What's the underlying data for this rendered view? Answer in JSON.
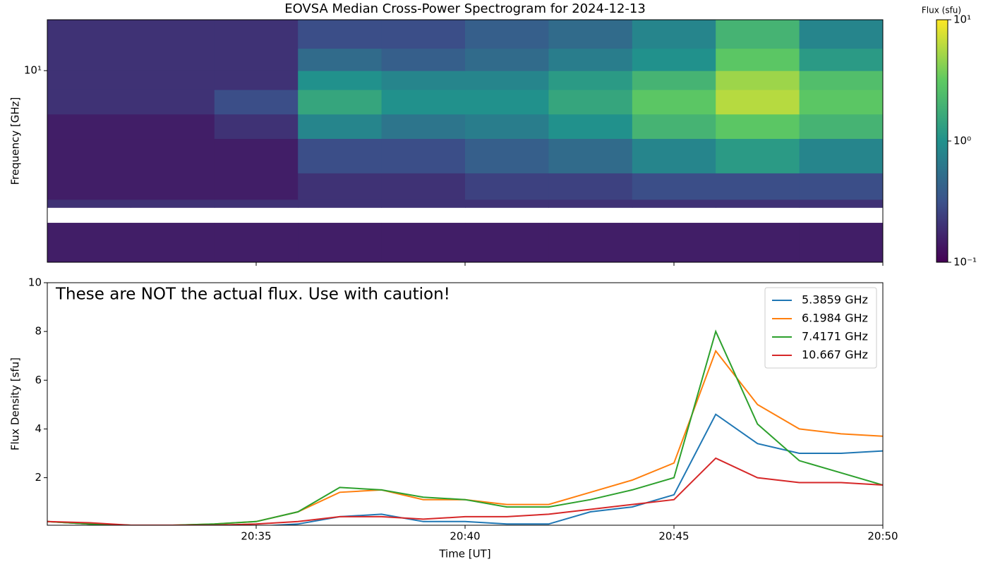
{
  "chart_data": [
    {
      "type": "heatmap",
      "title": "EOVSA Median Cross-Power Spectrogram for 2024-12-13",
      "y_label": "Frequency [GHz]",
      "x": [
        "20:30",
        "20:32",
        "20:34",
        "20:36",
        "20:38",
        "20:40",
        "20:42",
        "20:44",
        "20:46",
        "20:48",
        "20:50"
      ],
      "frequencies": [
        1.05,
        1.67,
        2.0,
        2.2,
        3,
        4.5,
        6,
        8,
        10,
        13,
        18.2
      ],
      "values": [
        [
          0.15,
          0.15,
          0.15,
          0.15,
          0.15,
          0.15,
          0.15,
          0.15,
          0.15,
          0.15
        ],
        [
          null,
          null,
          null,
          null,
          null,
          null,
          null,
          null,
          null,
          null
        ],
        [
          0.2,
          0.2,
          0.2,
          0.2,
          0.2,
          0.2,
          0.2,
          0.2,
          0.2,
          0.2
        ],
        [
          0.15,
          0.15,
          0.15,
          0.2,
          0.2,
          0.25,
          0.25,
          0.3,
          0.3,
          0.3
        ],
        [
          0.15,
          0.15,
          0.15,
          0.3,
          0.3,
          0.4,
          0.5,
          0.8,
          1.2,
          0.8
        ],
        [
          0.15,
          0.15,
          0.2,
          0.8,
          0.6,
          0.7,
          1.0,
          2.0,
          3.0,
          2.0
        ],
        [
          0.2,
          0.2,
          0.3,
          1.5,
          1.0,
          1.0,
          1.5,
          3.0,
          6.0,
          3.0
        ],
        [
          0.2,
          0.2,
          0.2,
          1.0,
          0.8,
          0.8,
          1.2,
          2.0,
          5.0,
          2.5
        ],
        [
          0.2,
          0.2,
          0.2,
          0.5,
          0.4,
          0.5,
          0.7,
          1.0,
          3.0,
          1.2
        ],
        [
          0.2,
          0.2,
          0.2,
          0.3,
          0.3,
          0.4,
          0.5,
          0.8,
          2.0,
          0.8
        ]
      ],
      "xlim": [
        "20:30",
        "20:50"
      ],
      "ylim": [
        1.05,
        18.2
      ],
      "log_y": true,
      "yticks": [
        {
          "value": 10,
          "label": "10¹"
        }
      ],
      "colormap": "viridis",
      "log_color": true,
      "colorbar_label": "Flux (sfu)",
      "clim": [
        0.1,
        10
      ],
      "colorbar_ticks": [
        {
          "value": 0.1,
          "label": "10⁻¹"
        },
        {
          "value": 1,
          "label": "10⁰"
        },
        {
          "value": 10,
          "label": "10¹"
        }
      ]
    },
    {
      "type": "line",
      "x_label": "Time [UT]",
      "y_label": "Flux Density [sfu]",
      "annotation": "These are NOT the actual flux. Use with caution!",
      "x": [
        "20:30",
        "20:31",
        "20:32",
        "20:33",
        "20:34",
        "20:35",
        "20:36",
        "20:37",
        "20:38",
        "20:39",
        "20:40",
        "20:41",
        "20:42",
        "20:43",
        "20:44",
        "20:45",
        "20:46",
        "20:47",
        "20:48",
        "20:49",
        "20:50"
      ],
      "series": [
        {
          "name": "5.3859 GHz",
          "color": "#1f77b4",
          "values": [
            0.2,
            0.1,
            0,
            0,
            0,
            0,
            0.1,
            0.4,
            0.5,
            0.2,
            0.2,
            0.1,
            0.1,
            0.6,
            0.8,
            1.3,
            4.6,
            3.4,
            3.0,
            3.0,
            3.1
          ]
        },
        {
          "name": "6.1984 GHz",
          "color": "#ff7f0e",
          "values": [
            0.2,
            0.1,
            0.05,
            0.05,
            0.1,
            0.2,
            0.6,
            1.4,
            1.5,
            1.1,
            1.1,
            0.9,
            0.9,
            1.4,
            1.9,
            2.6,
            7.2,
            5.0,
            4.0,
            3.8,
            3.7
          ]
        },
        {
          "name": "7.4171 GHz",
          "color": "#2ca02c",
          "values": [
            0.2,
            0.1,
            0.05,
            0.05,
            0.1,
            0.2,
            0.6,
            1.6,
            1.5,
            1.2,
            1.1,
            0.8,
            0.8,
            1.1,
            1.5,
            2.0,
            8.0,
            4.2,
            2.7,
            2.2,
            1.7
          ]
        },
        {
          "name": "10.667 GHz",
          "color": "#d62728",
          "values": [
            0.2,
            0.15,
            0.05,
            0.05,
            0.05,
            0.1,
            0.2,
            0.4,
            0.4,
            0.3,
            0.4,
            0.4,
            0.5,
            0.7,
            0.9,
            1.1,
            2.8,
            2.0,
            1.8,
            1.8,
            1.7
          ]
        }
      ],
      "xlim": [
        "20:30",
        "20:50"
      ],
      "ylim": [
        0.05,
        10
      ],
      "xticks": [
        "20:35",
        "20:40",
        "20:45",
        "20:50"
      ],
      "yticks": [
        2,
        4,
        6,
        8,
        10
      ],
      "legend": "upper right"
    }
  ]
}
